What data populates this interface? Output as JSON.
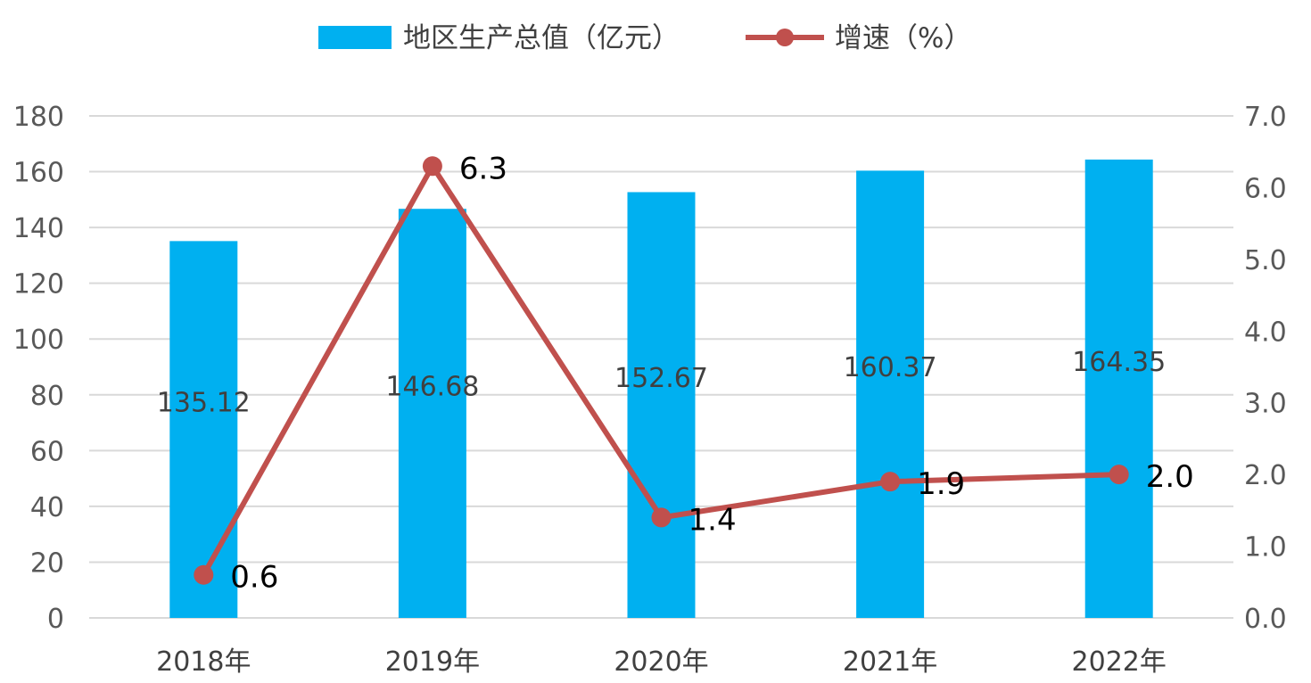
{
  "chart_data": {
    "type": "bar+line",
    "categories": [
      "2018年",
      "2019年",
      "2020年",
      "2021年",
      "2022年"
    ],
    "series": [
      {
        "name": "地区生产总值（亿元）",
        "type": "bar",
        "axis": "left",
        "color": "#00B0F0",
        "values": [
          135.12,
          146.68,
          152.67,
          160.37,
          164.35
        ],
        "labels": [
          "135.12",
          "146.68",
          "152.67",
          "160.37",
          "164.35"
        ]
      },
      {
        "name": "增速（%）",
        "type": "line",
        "axis": "right",
        "color": "#C0504D",
        "values": [
          0.6,
          6.3,
          1.4,
          1.9,
          2.0
        ],
        "labels": [
          "0.6",
          "6.3",
          "1.4",
          "1.9",
          "2.0"
        ]
      }
    ],
    "y_left": {
      "min": 0,
      "max": 180,
      "step": 20,
      "ticks": [
        "0",
        "20",
        "40",
        "60",
        "80",
        "100",
        "120",
        "140",
        "160",
        "180"
      ]
    },
    "y_right": {
      "min": 0,
      "max": 7,
      "step": 1,
      "ticks": [
        "0.0",
        "1.0",
        "2.0",
        "3.0",
        "4.0",
        "5.0",
        "6.0",
        "7.0"
      ]
    },
    "grid": true,
    "legend_position": "top-center"
  }
}
